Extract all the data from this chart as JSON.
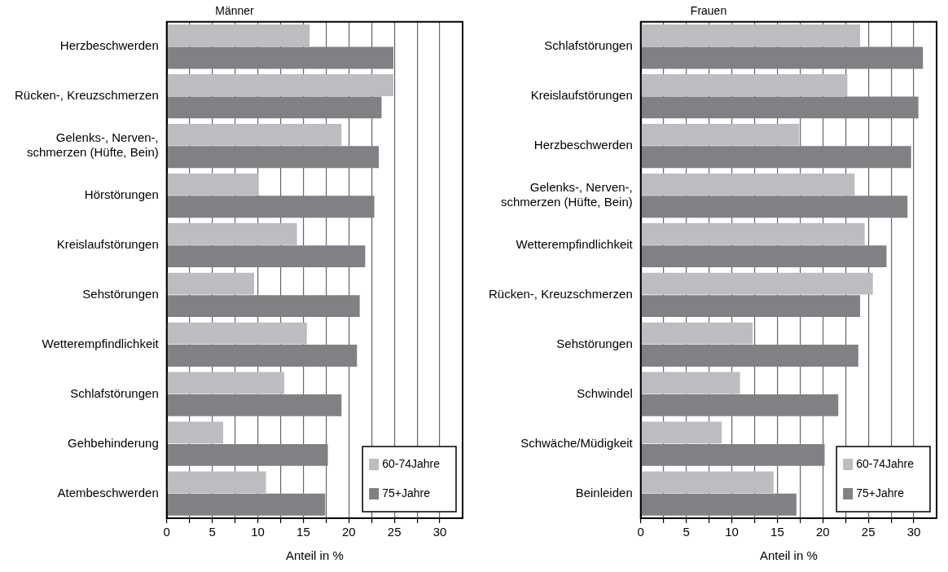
{
  "chart_data": [
    {
      "type": "bar",
      "orientation": "horizontal",
      "title": "Männer",
      "xlabel": "Anteil in %",
      "categories": [
        "Herzbeschwerden",
        "Rücken-, Kreuzschmerzen",
        "Gelenks-, Nerven-,\nschmerzen (Hüfte, Bein)",
        "Hörstörungen",
        "Kreislaufstörungen",
        "Sehstörungen",
        "Wetterempfindlichkeit",
        "Schlafstörungen",
        "Gehbehinderung",
        "Atembeschwerden"
      ],
      "series": [
        {
          "name": "60-74Jahre",
          "color": "#bcbdc1",
          "values": [
            15.7,
            24.9,
            19.2,
            10.1,
            14.3,
            9.6,
            15.4,
            12.9,
            6.2,
            10.9
          ]
        },
        {
          "name": "75+Jahre",
          "color": "#808184",
          "values": [
            24.9,
            23.6,
            23.3,
            22.8,
            21.8,
            21.2,
            20.9,
            19.2,
            17.7,
            17.4
          ]
        }
      ],
      "xlim": [
        0,
        32.5
      ],
      "xticks": [
        0,
        {
          "value": 2.5,
          "label": null
        },
        5,
        {
          "value": 7.5,
          "label": null
        },
        10,
        {
          "value": 12.5,
          "label": null
        },
        15,
        {
          "value": 17.5,
          "label": null
        },
        20,
        {
          "value": 22.5,
          "label": null
        },
        25,
        {
          "value": 27.5,
          "label": null
        },
        30
      ],
      "grid": "x",
      "legend": "bottom right"
    },
    {
      "type": "bar",
      "orientation": "horizontal",
      "title": "Frauen",
      "xlabel": "Anteil in %",
      "categories": [
        "Schlafstörungen",
        "Kreislaufstörungen",
        "Herzbeschwerden",
        "Gelenks-, Nerven-,\nschmerzen (Hüfte, Bein)",
        "Wetterempfindlichkeit",
        "Rücken-, Kreuzschmerzen",
        "Sehstörungen",
        "Schwindel",
        "Schwäche/Müdigkeit",
        "Beinleiden"
      ],
      "series": [
        {
          "name": "60-74Jahre",
          "color": "#bcbdc1",
          "values": [
            24.1,
            22.7,
            17.4,
            23.5,
            24.6,
            25.5,
            12.3,
            10.9,
            8.9,
            14.6
          ]
        },
        {
          "name": "75+Jahre",
          "color": "#808184",
          "values": [
            31.0,
            30.5,
            29.7,
            29.3,
            27.0,
            24.1,
            23.9,
            21.7,
            20.2,
            17.1
          ]
        }
      ],
      "xlim": [
        0,
        32.5
      ],
      "xticks": [
        0,
        {
          "value": 2.5,
          "label": null
        },
        5,
        {
          "value": 7.5,
          "label": null
        },
        10,
        {
          "value": 12.5,
          "label": null
        },
        15,
        {
          "value": 17.5,
          "label": null
        },
        20,
        {
          "value": 22.5,
          "label": null
        },
        25,
        {
          "value": 27.5,
          "label": null
        },
        30
      ],
      "grid": "x",
      "legend": "bottom right"
    }
  ]
}
